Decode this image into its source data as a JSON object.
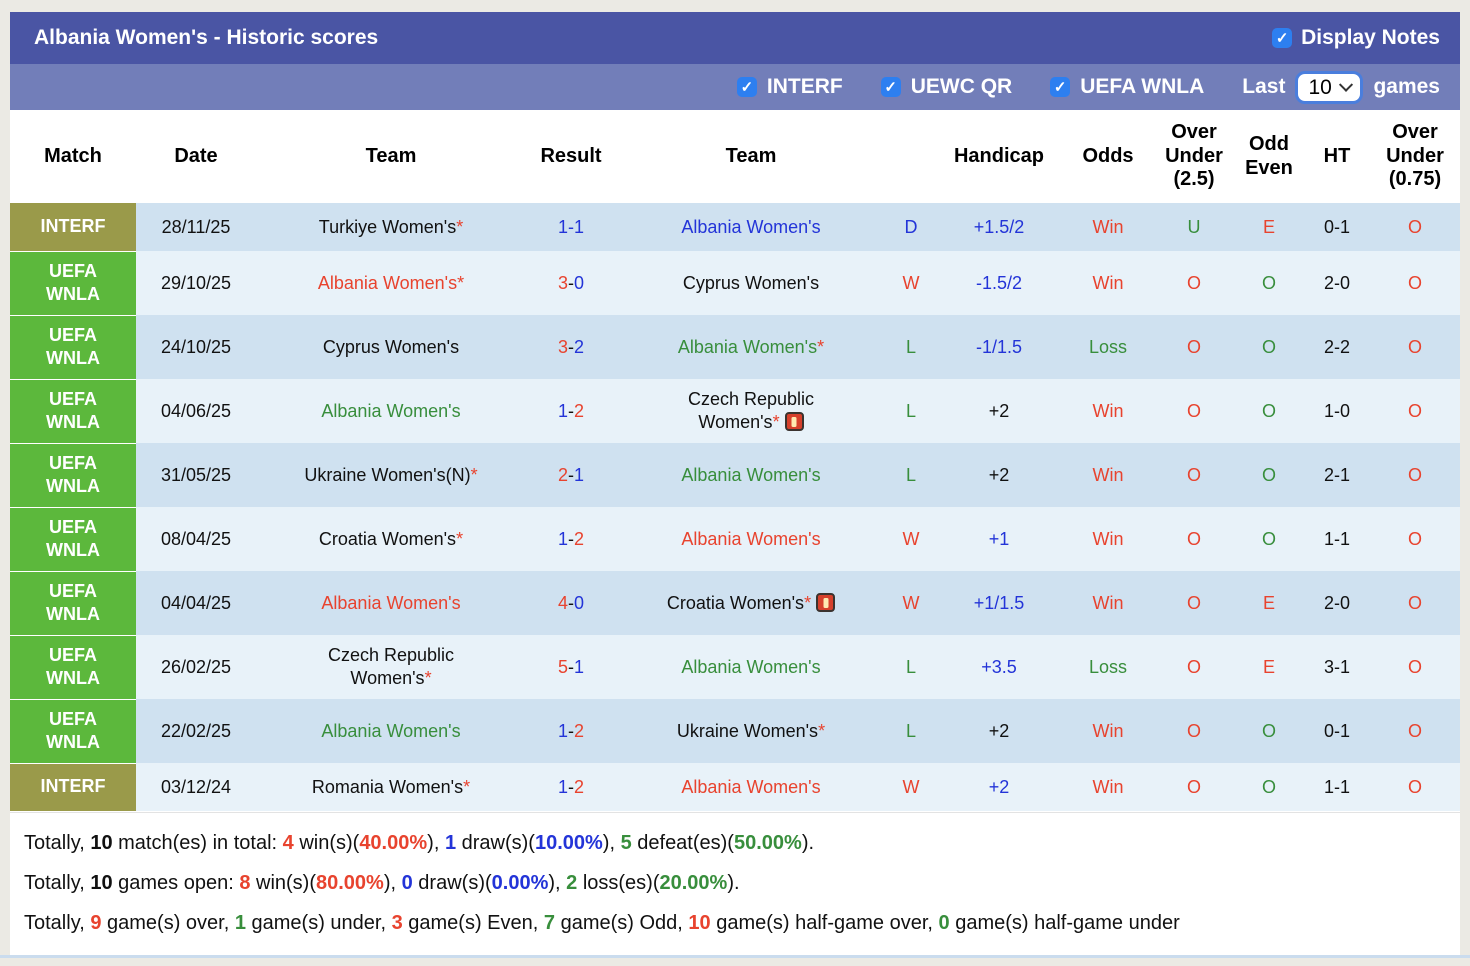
{
  "colors": {
    "red": "#e8432e",
    "green": "#388e3c",
    "blue": "#2334d8",
    "black": "#111111",
    "badge_olive": "#9a9a4a",
    "badge_green": "#5cb83c",
    "topbar": "#4a55a4",
    "filterbar": "#727eb9",
    "stripe_dark": "#cfe1f0",
    "stripe_light": "#e8f2f9",
    "checkbox_blue": "#2d7ff0"
  },
  "titlebar": {
    "title": "Albania Women's - Historic scores",
    "display_notes_label": "Display Notes",
    "display_notes_checked": true
  },
  "filterbar": {
    "competitions": [
      {
        "label": "INTERF",
        "checked": true
      },
      {
        "label": "UEWC QR",
        "checked": true
      },
      {
        "label": "UEFA WNLA",
        "checked": true
      }
    ],
    "last_label": "Last",
    "selected_count": "10",
    "games_label": "games"
  },
  "table": {
    "headers": [
      "Match",
      "Date",
      "Team",
      "Result",
      "Team",
      "",
      "Handicap",
      "Odds",
      "Over Under (2.5)",
      "Odd Even",
      "HT",
      "Over Under (0.75)"
    ],
    "rows": [
      {
        "badge": "INTERF",
        "badge_color": "badge_olive",
        "date": "28/11/25",
        "home": {
          "name": "Turkiye Women's",
          "star": true,
          "color": "black",
          "redcard": false
        },
        "score": {
          "h": "1",
          "d": "-",
          "a": "1",
          "hc": "blue",
          "dc": "blue",
          "ac": "blue"
        },
        "away": {
          "name": "Albania Women's",
          "star": false,
          "color": "blue",
          "redcard": false
        },
        "wld": {
          "t": "D",
          "c": "blue"
        },
        "handicap": {
          "t": "+1.5/2",
          "c": "blue"
        },
        "odds": {
          "t": "Win",
          "c": "red"
        },
        "ou25": {
          "t": "U",
          "c": "green"
        },
        "oddeven": {
          "t": "E",
          "c": "red"
        },
        "ht": "0-1",
        "ou075": {
          "t": "O",
          "c": "red"
        }
      },
      {
        "badge": "UEFA WNLA",
        "badge_color": "badge_green",
        "date": "29/10/25",
        "home": {
          "name": "Albania Women's",
          "star": true,
          "color": "red",
          "redcard": false
        },
        "score": {
          "h": "3",
          "d": "-",
          "a": "0",
          "hc": "red",
          "dc": "black",
          "ac": "blue"
        },
        "away": {
          "name": "Cyprus Women's",
          "star": false,
          "color": "black",
          "redcard": false
        },
        "wld": {
          "t": "W",
          "c": "red"
        },
        "handicap": {
          "t": "-1.5/2",
          "c": "blue"
        },
        "odds": {
          "t": "Win",
          "c": "red"
        },
        "ou25": {
          "t": "O",
          "c": "red"
        },
        "oddeven": {
          "t": "O",
          "c": "green"
        },
        "ht": "2-0",
        "ou075": {
          "t": "O",
          "c": "red"
        }
      },
      {
        "badge": "UEFA WNLA",
        "badge_color": "badge_green",
        "date": "24/10/25",
        "home": {
          "name": "Cyprus Women's",
          "star": false,
          "color": "black",
          "redcard": false
        },
        "score": {
          "h": "3",
          "d": "-",
          "a": "2",
          "hc": "red",
          "dc": "black",
          "ac": "blue"
        },
        "away": {
          "name": "Albania Women's",
          "star": true,
          "color": "green",
          "redcard": false
        },
        "wld": {
          "t": "L",
          "c": "green"
        },
        "handicap": {
          "t": "-1/1.5",
          "c": "blue"
        },
        "odds": {
          "t": "Loss",
          "c": "green"
        },
        "ou25": {
          "t": "O",
          "c": "red"
        },
        "oddeven": {
          "t": "O",
          "c": "green"
        },
        "ht": "2-2",
        "ou075": {
          "t": "O",
          "c": "red"
        }
      },
      {
        "badge": "UEFA WNLA",
        "badge_color": "badge_green",
        "date": "04/06/25",
        "home": {
          "name": "Albania Women's",
          "star": false,
          "color": "green",
          "redcard": false
        },
        "score": {
          "h": "1",
          "d": "-",
          "a": "2",
          "hc": "blue",
          "dc": "black",
          "ac": "red"
        },
        "away": {
          "name": "Czech Republic Women's",
          "star": true,
          "color": "black",
          "redcard": true
        },
        "wld": {
          "t": "L",
          "c": "green"
        },
        "handicap": {
          "t": "+2",
          "c": "black"
        },
        "odds": {
          "t": "Win",
          "c": "red"
        },
        "ou25": {
          "t": "O",
          "c": "red"
        },
        "oddeven": {
          "t": "O",
          "c": "green"
        },
        "ht": "1-0",
        "ou075": {
          "t": "O",
          "c": "red"
        }
      },
      {
        "badge": "UEFA WNLA",
        "badge_color": "badge_green",
        "date": "31/05/25",
        "home": {
          "name": "Ukraine Women's(N)",
          "star": true,
          "color": "black",
          "redcard": false
        },
        "score": {
          "h": "2",
          "d": "-",
          "a": "1",
          "hc": "red",
          "dc": "black",
          "ac": "blue"
        },
        "away": {
          "name": "Albania Women's",
          "star": false,
          "color": "green",
          "redcard": false
        },
        "wld": {
          "t": "L",
          "c": "green"
        },
        "handicap": {
          "t": "+2",
          "c": "black"
        },
        "odds": {
          "t": "Win",
          "c": "red"
        },
        "ou25": {
          "t": "O",
          "c": "red"
        },
        "oddeven": {
          "t": "O",
          "c": "green"
        },
        "ht": "2-1",
        "ou075": {
          "t": "O",
          "c": "red"
        }
      },
      {
        "badge": "UEFA WNLA",
        "badge_color": "badge_green",
        "date": "08/04/25",
        "home": {
          "name": "Croatia Women's",
          "star": true,
          "color": "black",
          "redcard": false
        },
        "score": {
          "h": "1",
          "d": "-",
          "a": "2",
          "hc": "blue",
          "dc": "black",
          "ac": "red"
        },
        "away": {
          "name": "Albania Women's",
          "star": false,
          "color": "red",
          "redcard": false
        },
        "wld": {
          "t": "W",
          "c": "red"
        },
        "handicap": {
          "t": "+1",
          "c": "blue"
        },
        "odds": {
          "t": "Win",
          "c": "red"
        },
        "ou25": {
          "t": "O",
          "c": "red"
        },
        "oddeven": {
          "t": "O",
          "c": "green"
        },
        "ht": "1-1",
        "ou075": {
          "t": "O",
          "c": "red"
        }
      },
      {
        "badge": "UEFA WNLA",
        "badge_color": "badge_green",
        "date": "04/04/25",
        "home": {
          "name": "Albania Women's",
          "star": false,
          "color": "red",
          "redcard": false
        },
        "score": {
          "h": "4",
          "d": "-",
          "a": "0",
          "hc": "red",
          "dc": "black",
          "ac": "blue"
        },
        "away": {
          "name": "Croatia Women's",
          "star": true,
          "color": "black",
          "redcard": true
        },
        "wld": {
          "t": "W",
          "c": "red"
        },
        "handicap": {
          "t": "+1/1.5",
          "c": "blue"
        },
        "odds": {
          "t": "Win",
          "c": "red"
        },
        "ou25": {
          "t": "O",
          "c": "red"
        },
        "oddeven": {
          "t": "E",
          "c": "red"
        },
        "ht": "2-0",
        "ou075": {
          "t": "O",
          "c": "red"
        }
      },
      {
        "badge": "UEFA WNLA",
        "badge_color": "badge_green",
        "date": "26/02/25",
        "home": {
          "name": "Czech Republic Women's",
          "star": true,
          "color": "black",
          "redcard": false
        },
        "score": {
          "h": "5",
          "d": "-",
          "a": "1",
          "hc": "red",
          "dc": "black",
          "ac": "blue"
        },
        "away": {
          "name": "Albania Women's",
          "star": false,
          "color": "green",
          "redcard": false
        },
        "wld": {
          "t": "L",
          "c": "green"
        },
        "handicap": {
          "t": "+3.5",
          "c": "blue"
        },
        "odds": {
          "t": "Loss",
          "c": "green"
        },
        "ou25": {
          "t": "O",
          "c": "red"
        },
        "oddeven": {
          "t": "E",
          "c": "red"
        },
        "ht": "3-1",
        "ou075": {
          "t": "O",
          "c": "red"
        }
      },
      {
        "badge": "UEFA WNLA",
        "badge_color": "badge_green",
        "date": "22/02/25",
        "home": {
          "name": "Albania Women's",
          "star": false,
          "color": "green",
          "redcard": false
        },
        "score": {
          "h": "1",
          "d": "-",
          "a": "2",
          "hc": "blue",
          "dc": "black",
          "ac": "red"
        },
        "away": {
          "name": "Ukraine Women's",
          "star": true,
          "color": "black",
          "redcard": false
        },
        "wld": {
          "t": "L",
          "c": "green"
        },
        "handicap": {
          "t": "+2",
          "c": "black"
        },
        "odds": {
          "t": "Win",
          "c": "red"
        },
        "ou25": {
          "t": "O",
          "c": "red"
        },
        "oddeven": {
          "t": "O",
          "c": "green"
        },
        "ht": "0-1",
        "ou075": {
          "t": "O",
          "c": "red"
        }
      },
      {
        "badge": "INTERF",
        "badge_color": "badge_olive",
        "date": "03/12/24",
        "home": {
          "name": "Romania Women's",
          "star": true,
          "color": "black",
          "redcard": false
        },
        "score": {
          "h": "1",
          "d": "-",
          "a": "2",
          "hc": "blue",
          "dc": "black",
          "ac": "red"
        },
        "away": {
          "name": "Albania Women's",
          "star": false,
          "color": "red",
          "redcard": false
        },
        "wld": {
          "t": "W",
          "c": "red"
        },
        "handicap": {
          "t": "+2",
          "c": "blue"
        },
        "odds": {
          "t": "Win",
          "c": "red"
        },
        "ou25": {
          "t": "O",
          "c": "red"
        },
        "oddeven": {
          "t": "O",
          "c": "green"
        },
        "ht": "1-1",
        "ou075": {
          "t": "O",
          "c": "red"
        }
      }
    ]
  },
  "summary": {
    "lines": [
      [
        {
          "t": "Totally, "
        },
        {
          "t": "10",
          "b": true
        },
        {
          "t": " match(es) in total: "
        },
        {
          "t": "4",
          "c": "red",
          "b": true
        },
        {
          "t": " win(s)("
        },
        {
          "t": "40.00%",
          "c": "red",
          "b": true
        },
        {
          "t": "), "
        },
        {
          "t": "1",
          "c": "blue",
          "b": true
        },
        {
          "t": " draw(s)("
        },
        {
          "t": "10.00%",
          "c": "blue",
          "b": true
        },
        {
          "t": "), "
        },
        {
          "t": "5",
          "c": "green",
          "b": true
        },
        {
          "t": " defeat(es)("
        },
        {
          "t": "50.00%",
          "c": "green",
          "b": true
        },
        {
          "t": ")."
        }
      ],
      [
        {
          "t": "Totally, "
        },
        {
          "t": "10",
          "b": true
        },
        {
          "t": " games open: "
        },
        {
          "t": "8",
          "c": "red",
          "b": true
        },
        {
          "t": " win(s)("
        },
        {
          "t": "80.00%",
          "c": "red",
          "b": true
        },
        {
          "t": "), "
        },
        {
          "t": "0",
          "c": "blue",
          "b": true
        },
        {
          "t": " draw(s)("
        },
        {
          "t": "0.00%",
          "c": "blue",
          "b": true
        },
        {
          "t": "), "
        },
        {
          "t": "2",
          "c": "green",
          "b": true
        },
        {
          "t": " loss(es)("
        },
        {
          "t": "20.00%",
          "c": "green",
          "b": true
        },
        {
          "t": ")."
        }
      ],
      [
        {
          "t": "Totally, "
        },
        {
          "t": "9",
          "c": "red",
          "b": true
        },
        {
          "t": " game(s) over, "
        },
        {
          "t": "1",
          "c": "green",
          "b": true
        },
        {
          "t": " game(s) under, "
        },
        {
          "t": "3",
          "c": "red",
          "b": true
        },
        {
          "t": " game(s) Even, "
        },
        {
          "t": "7",
          "c": "green",
          "b": true
        },
        {
          "t": " game(s) Odd, "
        },
        {
          "t": "10",
          "c": "red",
          "b": true
        },
        {
          "t": " game(s) half-game over, "
        },
        {
          "t": "0",
          "c": "green",
          "b": true
        },
        {
          "t": " game(s) half-game under"
        }
      ]
    ]
  }
}
